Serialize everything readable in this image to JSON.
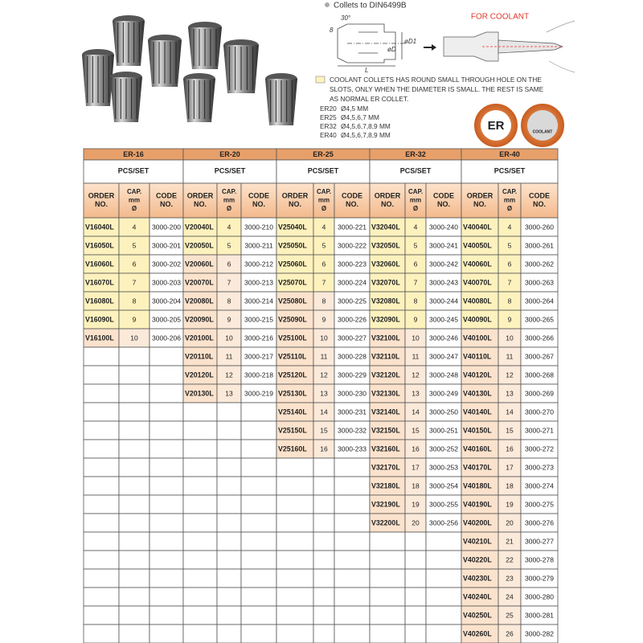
{
  "header": {
    "bullet_text": "Collets to DIN6499B",
    "diagram_labels": [
      "30°",
      "8",
      "øD",
      "øD1",
      "L"
    ],
    "coolant_title": "FOR COOLANT",
    "legend_lines": [
      "COOLANT COLLETS HAS ROUND SMALL THROUGH HOLE ON THE",
      "SLOTS, ONLY WHEN THE DIAMETER IS SMALL. THE REST IS SAME",
      "AS NORMAL ER COLLET."
    ],
    "sizes": [
      {
        "label": "ER20",
        "values": "Ø4,5 MM"
      },
      {
        "label": "ER25",
        "values": "Ø4,5,6,7 MM"
      },
      {
        "label": "ER32",
        "values": "Ø4,5,6,7,8,9 MM"
      },
      {
        "label": "ER40",
        "values": "Ø4,5,6,7,8,9 MM"
      }
    ],
    "logos": [
      "ER",
      "COOLANT"
    ]
  },
  "table": {
    "column_headers": [
      [
        "ORDER",
        "NO."
      ],
      [
        "CAP.",
        "mm",
        "Ø"
      ],
      [
        "CODE",
        "NO."
      ]
    ],
    "groups": [
      {
        "name": "ER-16",
        "pcs": "PCS/SET",
        "rows": [
          [
            "V16040L",
            4,
            "3000-200"
          ],
          [
            "V16050L",
            5,
            "3000-201"
          ],
          [
            "V16060L",
            6,
            "3000-202"
          ],
          [
            "V16070L",
            7,
            "3000-203"
          ],
          [
            "V16080L",
            8,
            "3000-204"
          ],
          [
            "V16090L",
            9,
            "3000-205"
          ],
          [
            "V16100L",
            10,
            "3000-206"
          ]
        ]
      },
      {
        "name": "ER-20",
        "pcs": "PCS/SET",
        "rows": [
          [
            "V20040L",
            4,
            "3000-210"
          ],
          [
            "V20050L",
            5,
            "3000-211"
          ],
          [
            "V20060L",
            6,
            "3000-212"
          ],
          [
            "V20070L",
            7,
            "3000-213"
          ],
          [
            "V20080L",
            8,
            "3000-214"
          ],
          [
            "V20090L",
            9,
            "3000-215"
          ],
          [
            "V20100L",
            10,
            "3000-216"
          ],
          [
            "V20110L",
            11,
            "3000-217"
          ],
          [
            "V20120L",
            12,
            "3000-218"
          ],
          [
            "V20130L",
            13,
            "3000-219"
          ]
        ]
      },
      {
        "name": "ER-25",
        "pcs": "PCS/SET",
        "rows": [
          [
            "V25040L",
            4,
            "3000-221"
          ],
          [
            "V25050L",
            5,
            "3000-222"
          ],
          [
            "V25060L",
            6,
            "3000-223"
          ],
          [
            "V25070L",
            7,
            "3000-224"
          ],
          [
            "V25080L",
            8,
            "3000-225"
          ],
          [
            "V25090L",
            9,
            "3000-226"
          ],
          [
            "V25100L",
            10,
            "3000-227"
          ],
          [
            "V25110L",
            11,
            "3000-228"
          ],
          [
            "V25120L",
            12,
            "3000-229"
          ],
          [
            "V25130L",
            13,
            "3000-230"
          ],
          [
            "V25140L",
            14,
            "3000-231"
          ],
          [
            "V25150L",
            15,
            "3000-232"
          ],
          [
            "V25160L",
            16,
            "3000-233"
          ]
        ]
      },
      {
        "name": "ER-32",
        "pcs": "PCS/SET",
        "rows": [
          [
            "V32040L",
            4,
            "3000-240"
          ],
          [
            "V32050L",
            5,
            "3000-241"
          ],
          [
            "V32060L",
            6,
            "3000-242"
          ],
          [
            "V32070L",
            7,
            "3000-243"
          ],
          [
            "V32080L",
            8,
            "3000-244"
          ],
          [
            "V32090L",
            9,
            "3000-245"
          ],
          [
            "V32100L",
            10,
            "3000-246"
          ],
          [
            "V32110L",
            11,
            "3000-247"
          ],
          [
            "V32120L",
            12,
            "3000-248"
          ],
          [
            "V32130L",
            13,
            "3000-249"
          ],
          [
            "V32140L",
            14,
            "3000-250"
          ],
          [
            "V32150L",
            15,
            "3000-251"
          ],
          [
            "V32160L",
            16,
            "3000-252"
          ],
          [
            "V32170L",
            17,
            "3000-253"
          ],
          [
            "V32180L",
            18,
            "3000-254"
          ],
          [
            "V32190L",
            19,
            "3000-255"
          ],
          [
            "V32200L",
            20,
            "3000-256"
          ]
        ]
      },
      {
        "name": "ER-40",
        "pcs": "PCS/SET",
        "rows": [
          [
            "V40040L",
            4,
            "3000-260"
          ],
          [
            "V40050L",
            5,
            "3000-261"
          ],
          [
            "V40060L",
            6,
            "3000-262"
          ],
          [
            "V40070L",
            7,
            "3000-263"
          ],
          [
            "V40080L",
            8,
            "3000-264"
          ],
          [
            "V40090L",
            9,
            "3000-265"
          ],
          [
            "V40100L",
            10,
            "3000-266"
          ],
          [
            "V40110L",
            11,
            "3000-267"
          ],
          [
            "V40120L",
            12,
            "3000-268"
          ],
          [
            "V40130L",
            13,
            "3000-269"
          ],
          [
            "V40140L",
            14,
            "3000-270"
          ],
          [
            "V40150L",
            15,
            "3000-271"
          ],
          [
            "V40160L",
            16,
            "3000-272"
          ],
          [
            "V40170L",
            17,
            "3000-273"
          ],
          [
            "V40180L",
            18,
            "3000-274"
          ],
          [
            "V40190L",
            19,
            "3000-275"
          ],
          [
            "V40200L",
            20,
            "3000-276"
          ],
          [
            "V40210L",
            21,
            "3000-277"
          ],
          [
            "V40220L",
            22,
            "3000-278"
          ],
          [
            "V40230L",
            23,
            "3000-279"
          ],
          [
            "V40240L",
            24,
            "3000-280"
          ],
          [
            "V40250L",
            25,
            "3000-281"
          ],
          [
            "V40260L",
            26,
            "3000-282"
          ]
        ]
      }
    ]
  }
}
